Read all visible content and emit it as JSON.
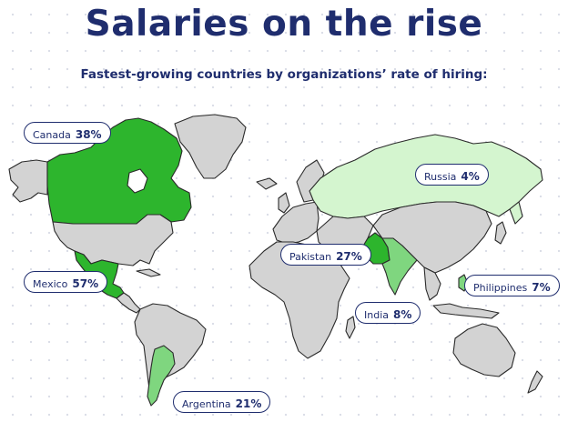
{
  "title": "Salaries on the rise",
  "subtitle": "Fastest-growing countries by organizations’ rate of hiring:",
  "colors": {
    "title": "#1f2d6e",
    "land_default": "#d3d3d3",
    "border": "#2a2a2a",
    "dark_green": "#2db52d",
    "mid_green": "#7fd67f",
    "light_green": "#d4f5cf"
  },
  "countries": [
    {
      "id": "canada",
      "label": "Canada",
      "value": "38%",
      "fill": "#2db52d"
    },
    {
      "id": "mexico",
      "label": "Mexico",
      "value": "57%",
      "fill": "#2db52d"
    },
    {
      "id": "argentina",
      "label": "Argentina",
      "value": "21%",
      "fill": "#7fd67f"
    },
    {
      "id": "russia",
      "label": "Russia",
      "value": "4%",
      "fill": "#d4f5cf"
    },
    {
      "id": "pakistan",
      "label": "Pakistan",
      "value": "27%",
      "fill": "#2db52d"
    },
    {
      "id": "india",
      "label": "India",
      "value": "8%",
      "fill": "#7fd67f"
    },
    {
      "id": "philippines",
      "label": "Philippines",
      "value": "7%",
      "fill": "#7fd67f"
    }
  ]
}
